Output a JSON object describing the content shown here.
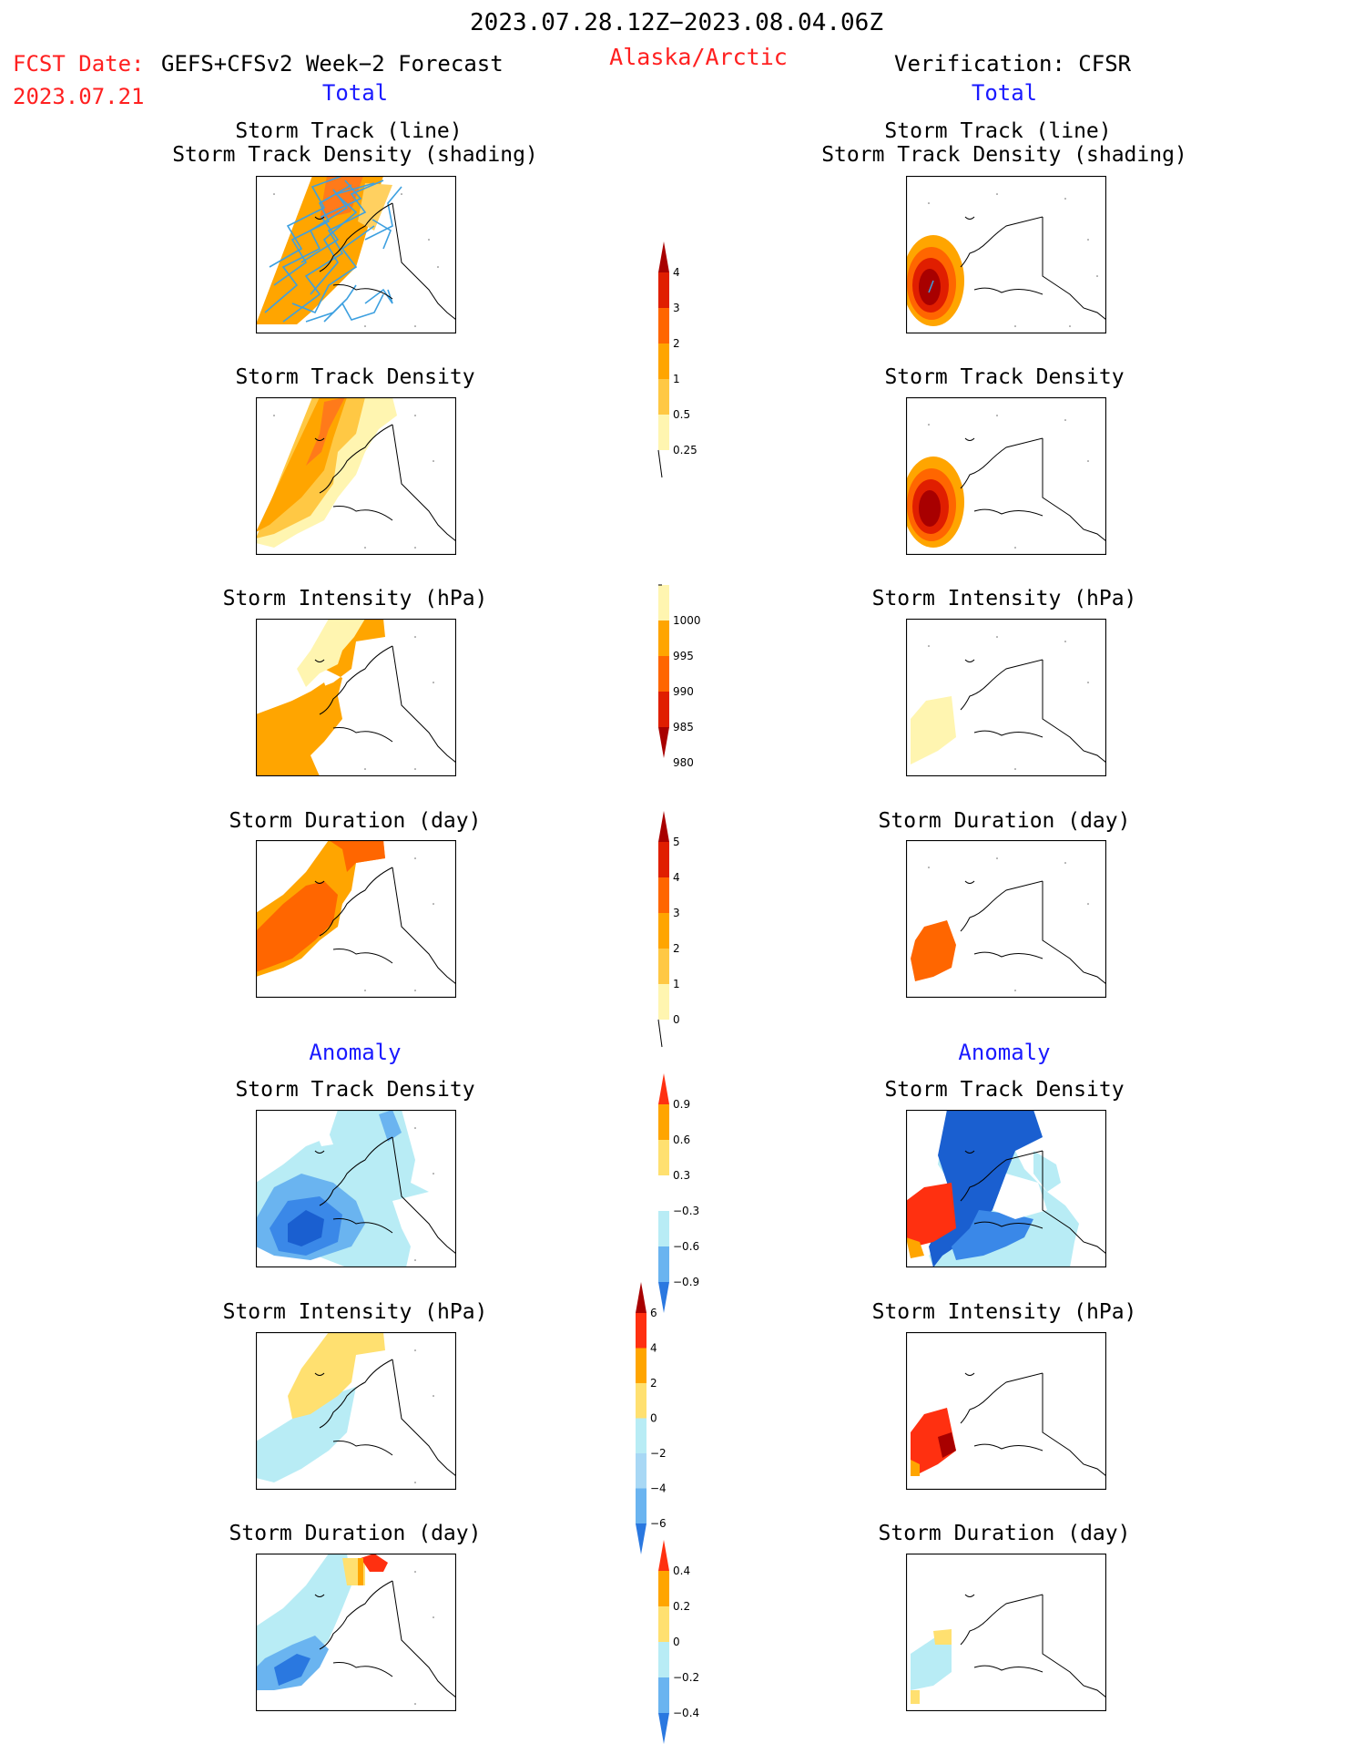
{
  "header": {
    "period": "2023.07.28.12Z−2023.08.04.06Z",
    "region": "Alaska/Arctic",
    "fcst_label": "FCST Date:",
    "fcst_model": "GEFS+CFSv2 Week−2 Forecast",
    "fcst_date": "2023.07.21",
    "verification": "Verification: CFSR"
  },
  "sections": {
    "total_left": "Total",
    "total_right": "Total",
    "anomaly_left": "Anomaly",
    "anomaly_right": "Anomaly"
  },
  "panel_titles": {
    "track_line": "Storm Track (line)",
    "track_shading": "Storm Track Density (shading)",
    "density": "Storm Track Density",
    "intensity": "Storm Intensity (hPa)",
    "duration": "Storm Duration (day)"
  },
  "colorbars": {
    "density_total": {
      "labels": [
        "4",
        "3",
        "2",
        "1",
        "0.5",
        "0.25"
      ],
      "colors": [
        "#a80000",
        "#e01e00",
        "#ff6600",
        "#ffa500",
        "#ffc844",
        "#fff5b0"
      ]
    },
    "intensity_total": {
      "labels": [
        "1000",
        "995",
        "990",
        "985",
        "980"
      ],
      "colors": [
        "#fff5b0",
        "#ffa500",
        "#ff6600",
        "#e01e00",
        "#a80000"
      ]
    },
    "duration_total": {
      "labels": [
        "5",
        "4",
        "3",
        "2",
        "1",
        "0"
      ],
      "colors": [
        "#a80000",
        "#e01e00",
        "#ff6600",
        "#ffa500",
        "#ffc844",
        "#fff5b0"
      ]
    },
    "density_anom": {
      "labels": [
        "0.9",
        "0.6",
        "0.3",
        "−0.3",
        "−0.6",
        "−0.9"
      ],
      "colors": [
        "#ff3010",
        "#ffa500",
        "#ffe070",
        "#ffffff",
        "#b8ecf5",
        "#6ab4f0",
        "#2a78e0"
      ]
    },
    "intensity_anom": {
      "labels": [
        "6",
        "4",
        "2",
        "0",
        "−2",
        "−4",
        "−6"
      ],
      "colors": [
        "#a80000",
        "#ff3010",
        "#ffa500",
        "#ffe070",
        "#b8ecf5",
        "#a8d8f5",
        "#6ab4f0",
        "#2a78e0"
      ]
    },
    "duration_anom": {
      "labels": [
        "0.4",
        "0.2",
        "0",
        "−0.2",
        "−0.4"
      ],
      "colors": [
        "#ff3010",
        "#ffa500",
        "#ffe070",
        "#b8ecf5",
        "#6ab4f0",
        "#2a78e0"
      ]
    }
  }
}
